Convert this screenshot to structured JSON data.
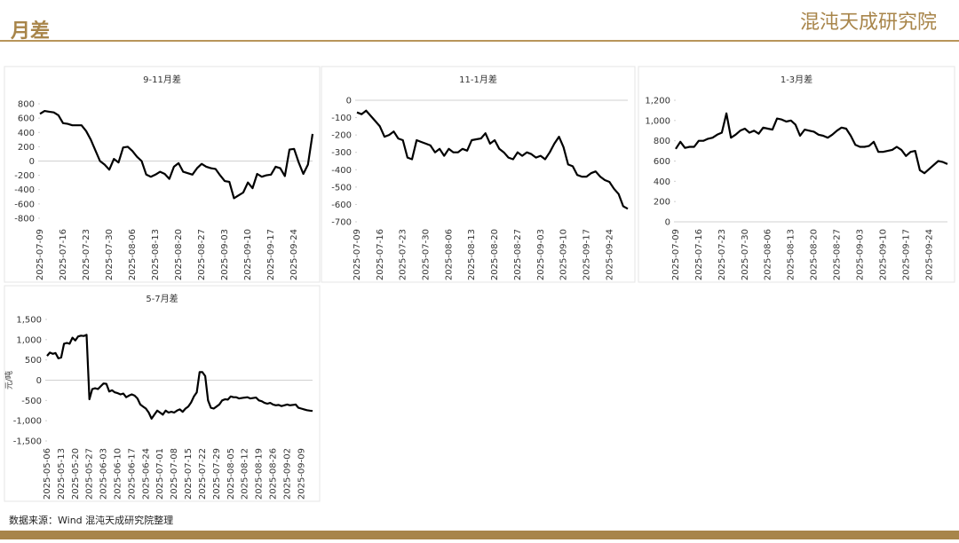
{
  "header": {
    "title": "月差",
    "logo": "混沌天成研究院"
  },
  "footer": {
    "source": "数据来源：Wind 混沌天成研究院整理"
  },
  "chart_data": [
    {
      "type": "line",
      "title": "9-11月差",
      "color": "#000000",
      "categories": [
        "2025-07-09",
        null,
        null,
        null,
        null,
        "2025-07-16",
        null,
        null,
        null,
        null,
        "2025-07-23",
        null,
        null,
        null,
        null,
        "2025-07-30",
        null,
        null,
        null,
        null,
        "2025-08-06",
        null,
        null,
        null,
        null,
        "2025-08-13",
        null,
        null,
        null,
        null,
        "2025-08-20",
        null,
        null,
        null,
        null,
        "2025-08-27",
        null,
        null,
        null,
        null,
        "2025-09-03",
        null,
        null,
        null,
        null,
        "2025-09-10",
        null,
        null,
        null,
        null,
        "2025-09-17",
        null,
        null,
        null,
        null,
        "2025-09-24",
        null,
        null,
        null,
        null
      ],
      "values": [
        660,
        700,
        690,
        680,
        640,
        530,
        520,
        500,
        500,
        500,
        420,
        300,
        150,
        0,
        -50,
        -120,
        30,
        -20,
        190,
        200,
        140,
        60,
        0,
        -190,
        -220,
        -190,
        -150,
        -180,
        -250,
        -80,
        -30,
        -150,
        -170,
        -190,
        -100,
        -40,
        -80,
        -100,
        -110,
        -200,
        -280,
        -290,
        -520,
        -480,
        -440,
        -300,
        -380,
        -180,
        -220,
        -200,
        -190,
        -80,
        -100,
        -210,
        160,
        170,
        -20,
        -180,
        -50,
        380
      ],
      "ylim": [
        -850,
        850
      ],
      "yticks": [
        -800,
        -600,
        -400,
        -200,
        0,
        200,
        400,
        600,
        800
      ]
    },
    {
      "type": "line",
      "title": "11-1月差",
      "color": "#000000",
      "categories": [
        "2025-07-09",
        null,
        null,
        null,
        null,
        "2025-07-16",
        null,
        null,
        null,
        null,
        "2025-07-23",
        null,
        null,
        null,
        null,
        "2025-07-30",
        null,
        null,
        null,
        null,
        "2025-08-06",
        null,
        null,
        null,
        null,
        "2025-08-13",
        null,
        null,
        null,
        null,
        "2025-08-20",
        null,
        null,
        null,
        null,
        "2025-08-27",
        null,
        null,
        null,
        null,
        "2025-09-03",
        null,
        null,
        null,
        null,
        "2025-09-10",
        null,
        null,
        null,
        null,
        "2025-09-17",
        null,
        null,
        null,
        null,
        "2025-09-24",
        null,
        null,
        null,
        null
      ],
      "values": [
        -70,
        -80,
        -60,
        -90,
        -120,
        -150,
        -210,
        -200,
        -180,
        -220,
        -230,
        -330,
        -340,
        -230,
        -240,
        -250,
        -260,
        -300,
        -280,
        -320,
        -280,
        -300,
        -300,
        -280,
        -290,
        -230,
        -225,
        -220,
        -190,
        -250,
        -230,
        -280,
        -300,
        -330,
        -340,
        -300,
        -320,
        -300,
        -310,
        -330,
        -320,
        -340,
        -300,
        -250,
        -210,
        -270,
        -370,
        -380,
        -430,
        -440,
        -440,
        -420,
        -410,
        -440,
        -460,
        -470,
        -510,
        -540,
        -610,
        -625
      ],
      "ylim": [
        -700,
        0
      ],
      "yticks": [
        -700,
        -600,
        -500,
        -400,
        -300,
        -200,
        -100,
        0
      ]
    },
    {
      "type": "line",
      "title": "1-3月差",
      "color": "#000000",
      "categories": [
        "2025-07-09",
        null,
        null,
        null,
        null,
        "2025-07-16",
        null,
        null,
        null,
        null,
        "2025-07-23",
        null,
        null,
        null,
        null,
        "2025-07-30",
        null,
        null,
        null,
        null,
        "2025-08-06",
        null,
        null,
        null,
        null,
        "2025-08-13",
        null,
        null,
        null,
        null,
        "2025-08-20",
        null,
        null,
        null,
        null,
        "2025-08-27",
        null,
        null,
        null,
        null,
        "2025-09-03",
        null,
        null,
        null,
        null,
        "2025-09-10",
        null,
        null,
        null,
        null,
        "2025-09-17",
        null,
        null,
        null,
        null,
        "2025-09-24",
        null,
        null,
        null,
        null
      ],
      "values": [
        720,
        790,
        730,
        740,
        740,
        800,
        800,
        820,
        830,
        860,
        880,
        1070,
        830,
        860,
        900,
        920,
        880,
        900,
        870,
        930,
        920,
        910,
        1020,
        1010,
        990,
        1000,
        960,
        850,
        910,
        900,
        890,
        860,
        850,
        830,
        860,
        900,
        930,
        920,
        850,
        760,
        740,
        740,
        750,
        790,
        690,
        690,
        700,
        710,
        740,
        710,
        650,
        690,
        700,
        510,
        480,
        520,
        560,
        600,
        590,
        570
      ],
      "ylim": [
        0,
        1200
      ],
      "yticks": [
        0,
        200,
        400,
        600,
        800,
        {
          "value": 1000,
          "label": "1,000"
        },
        {
          "value": 1200,
          "label": "1,200"
        }
      ]
    },
    {
      "type": "line",
      "title": "5-7月差",
      "y_label": "元/吨",
      "color": "#000000",
      "categories": [
        "2025-05-06",
        null,
        null,
        null,
        null,
        "2025-05-13",
        null,
        null,
        null,
        null,
        "2025-05-20",
        null,
        null,
        null,
        null,
        "2025-05-27",
        null,
        null,
        null,
        null,
        "2025-06-03",
        null,
        null,
        null,
        null,
        "2025-06-10",
        null,
        null,
        null,
        null,
        "2025-06-17",
        null,
        null,
        null,
        null,
        "2025-06-24",
        null,
        null,
        null,
        null,
        "2025-07-01",
        null,
        null,
        null,
        null,
        "2025-07-08",
        null,
        null,
        null,
        null,
        "2025-07-15",
        null,
        null,
        null,
        null,
        "2025-07-22",
        null,
        null,
        null,
        null,
        "2025-07-29",
        null,
        null,
        null,
        null,
        "2025-08-05",
        null,
        null,
        null,
        null,
        "2025-08-12",
        null,
        null,
        null,
        null,
        "2025-08-19",
        null,
        null,
        null,
        null,
        "2025-08-26",
        null,
        null,
        null,
        null,
        "2025-09-02",
        null,
        null,
        null,
        null,
        "2025-09-09",
        null,
        null,
        null,
        null
      ],
      "values": [
        600,
        680,
        650,
        670,
        540,
        560,
        900,
        920,
        900,
        1050,
        980,
        1080,
        1100,
        1090,
        1120,
        -470,
        -220,
        -200,
        -220,
        -150,
        -80,
        -90,
        -280,
        -250,
        -300,
        -320,
        -350,
        -330,
        -420,
        -380,
        -350,
        -380,
        -450,
        -600,
        -650,
        -700,
        -800,
        -950,
        -850,
        -750,
        -800,
        -850,
        -750,
        -800,
        -780,
        -800,
        -750,
        -720,
        -780,
        -700,
        -650,
        -550,
        -400,
        -300,
        200,
        200,
        100,
        -500,
        -680,
        -700,
        -650,
        -600,
        -500,
        -470,
        -480,
        -400,
        -420,
        -420,
        -450,
        -440,
        -430,
        -420,
        -450,
        -440,
        -430,
        -500,
        -520,
        -560,
        -580,
        -560,
        -600,
        -620,
        -610,
        -640,
        -620,
        -600,
        -620,
        -610,
        -600,
        -680,
        -700,
        -720,
        -740,
        -750,
        -760
      ],
      "ylim": [
        -1500,
        1500
      ],
      "yticks": [
        {
          "value": -1500,
          "label": "-1,500"
        },
        {
          "value": -1000,
          "label": "-1,000"
        },
        -500,
        0,
        500,
        {
          "value": 1000,
          "label": "1,000"
        },
        {
          "value": 1500,
          "label": "1,500"
        }
      ]
    }
  ]
}
